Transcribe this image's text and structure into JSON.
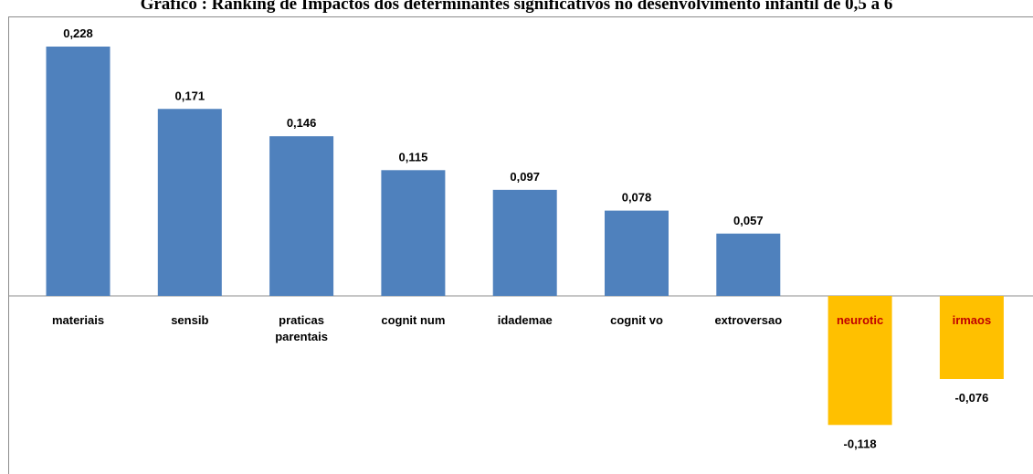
{
  "chart_data": {
    "type": "bar",
    "title": "Gráfico : Ranking de Impactos dos determinantes significativos no desenvolvimento infantil de 0,5 a 6",
    "categories": [
      [
        "materiais"
      ],
      [
        "sensib"
      ],
      [
        "praticas",
        "parentais"
      ],
      [
        "cognit num"
      ],
      [
        "idademae"
      ],
      [
        "cognit vo"
      ],
      [
        "extroversao"
      ],
      [
        "neurotic"
      ],
      [
        "irmaos"
      ]
    ],
    "values": [
      0.228,
      0.171,
      0.146,
      0.115,
      0.097,
      0.078,
      0.057,
      -0.118,
      -0.076
    ],
    "data_labels": [
      "0,228",
      "0,171",
      "0,146",
      "0,115",
      "0,097",
      "0,078",
      "0,057",
      "-0,118",
      "-0,076"
    ],
    "colors": {
      "positive": "#4f81bd",
      "negative": "#ffc000",
      "negative_label": "#c00000",
      "axis": "#8c8c8c"
    },
    "ylim": [
      -0.118,
      0.228
    ],
    "grid": false,
    "legend": "none",
    "xlabel": "",
    "ylabel": ""
  }
}
